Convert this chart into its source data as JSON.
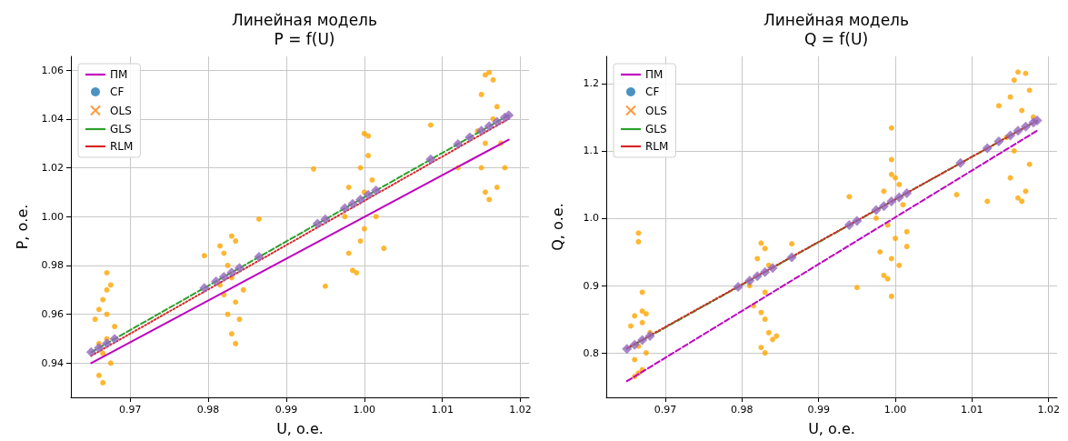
{
  "chart_data": [
    {
      "type": "scatter",
      "title": "Линейная модель\nP = f(U)",
      "xlabel": "U, о.е.",
      "ylabel": "P, о.е.",
      "xlim": [
        0.9624,
        1.0211
      ],
      "ylim": [
        0.926,
        1.0656
      ],
      "xticks": [
        0.97,
        0.98,
        0.99,
        {
          "value": 1,
          "label": "1.00"
        },
        1.01,
        1.02
      ],
      "yticks": [
        0.94,
        0.96,
        0.98,
        {
          "value": 1,
          "label": "1.00"
        },
        1.02,
        1.04,
        1.06
      ],
      "grid": true,
      "legend": "top left",
      "series": [
        {
          "color": "#ffa500",
          "marker": "circle",
          "x": [
            0.9655,
            0.966,
            0.9665,
            0.967,
            0.9675,
            0.968,
            0.966,
            0.9665,
            0.967,
            0.9675,
            0.966,
            0.967,
            0.9665,
            0.967,
            0.9815,
            0.982,
            0.983,
            0.9835,
            0.9825,
            0.983,
            0.982,
            0.9825,
            0.9835,
            0.984,
            0.983,
            0.9835,
            0.9845,
            0.9815,
            0.9975,
            0.998,
            0.9985,
            0.999,
            0.9995,
            1.0,
            0.9995,
            1.0005,
            1.0,
            1.0005,
            1.0015,
            1.001,
            0.998,
            1.0,
            1.0145,
            1.015,
            1.0155,
            1.016,
            1.0165,
            1.017,
            1.0175,
            1.018,
            1.017,
            1.016,
            1.0155,
            1.015,
            1.0155,
            1.0165,
            0.9795,
            0.9865,
            0.9935,
            0.995,
            1.0085,
            1.0025,
            1.012
          ],
          "values": [
            0.958,
            0.935,
            0.932,
            0.97,
            0.972,
            0.955,
            0.962,
            0.966,
            0.977,
            0.94,
            0.948,
            0.95,
            0.944,
            0.96,
            0.988,
            0.985,
            0.992,
            0.99,
            0.98,
            0.975,
            0.968,
            0.96,
            0.965,
            0.958,
            0.952,
            0.948,
            0.97,
            0.972,
            1.0,
            0.985,
            0.978,
            0.977,
            0.99,
            1.01,
            1.02,
            1.025,
            1.034,
            1.033,
            1.0,
            1.015,
            1.012,
            0.995,
            1.035,
            1.05,
            1.058,
            1.059,
            1.056,
            1.045,
            1.03,
            1.02,
            1.012,
            1.007,
            1.01,
            1.02,
            1.03,
            1.04,
            0.984,
            0.999,
            1.0195,
            0.9715,
            1.0375,
            0.987,
            1.02
          ]
        },
        {
          "type": "line",
          "name": "ПМ",
          "color": "#bf00bf",
          "line_style": "solid",
          "x": [
            0.965,
            1.0185
          ],
          "values": [
            0.94,
            1.0315
          ]
        },
        {
          "name": "CF",
          "color": "#1f77b4",
          "marker": "circle"
        },
        {
          "name": "OLS",
          "color": "#ff7f0e",
          "marker": "cross"
        },
        {
          "type": "line",
          "name": "GLS",
          "color": "#2ca02c",
          "line_style": "dashed",
          "x": [
            0.965,
            1.0185
          ],
          "values": [
            0.9445,
            1.0415
          ]
        },
        {
          "type": "line",
          "name": "RLM",
          "color": "#d62728",
          "line_style": "dotted",
          "x": [
            0.965,
            1.0185
          ],
          "values": [
            0.943,
            1.04
          ]
        },
        {
          "color": "#9467bd",
          "marker": "diamond",
          "x": [
            0.965,
            0.966,
            0.967,
            0.968,
            0.9795,
            0.981,
            0.982,
            0.983,
            0.984,
            0.9865,
            0.994,
            0.995,
            0.9975,
            0.9985,
            0.9995,
            1.0005,
            1.0015,
            1.0085,
            1.012,
            1.0135,
            1.015,
            1.016,
            1.017,
            1.018,
            1.0185
          ],
          "values": [
            0.9445,
            0.9463,
            0.9481,
            0.9499,
            0.9708,
            0.9735,
            0.9753,
            0.9771,
            0.979,
            0.9835,
            0.9971,
            0.9989,
            1.0034,
            1.0052,
            1.007,
            1.0089,
            1.0107,
            1.0234,
            1.0297,
            1.0325,
            1.0352,
            1.037,
            1.0388,
            1.0406,
            1.0415
          ]
        }
      ]
    },
    {
      "type": "scatter",
      "title": "Линейная модель\nQ = f(U)",
      "xlabel": "U, о.е.",
      "ylabel": "Q, о.е.",
      "xlim": [
        0.9623,
        1.0211
      ],
      "ylim": [
        0.734,
        1.2403
      ],
      "xticks": [
        0.97,
        0.98,
        0.99,
        {
          "value": 1,
          "label": "1.00"
        },
        1.01,
        1.02
      ],
      "yticks": [
        0.8,
        0.9,
        {
          "value": 1,
          "label": "1.0"
        },
        1.1,
        1.2
      ],
      "grid": true,
      "legend": "top left",
      "series": [
        {
          "color": "#ffa500",
          "marker": "circle",
          "x": [
            0.9655,
            0.966,
            0.967,
            0.9675,
            0.968,
            0.9675,
            0.967,
            0.966,
            0.9665,
            0.9665,
            0.966,
            0.967,
            0.9665,
            0.9665,
            0.967,
            0.981,
            0.982,
            0.9825,
            0.983,
            0.9835,
            0.983,
            0.9825,
            0.983,
            0.9835,
            0.984,
            0.9825,
            0.983,
            0.9845,
            0.9815,
            0.9865,
            0.9975,
            0.998,
            0.9985,
            0.999,
            0.9995,
            1.0,
            0.9995,
            1.0005,
            1.001,
            1.0015,
            1.0005,
            0.9985,
            0.999,
            1.0,
            0.9995,
            0.9995,
            0.9995,
            1.0015,
            0.994,
            0.995,
            1.0145,
            1.015,
            1.0155,
            1.016,
            1.017,
            1.0175,
            1.018,
            1.0175,
            1.017,
            1.0165,
            1.016,
            1.015,
            1.0155,
            1.0165,
            1.0135,
            1.008,
            1.012
          ],
          "values": [
            0.84,
            0.855,
            0.862,
            0.858,
            0.83,
            0.8,
            0.775,
            0.765,
            0.77,
            0.81,
            0.79,
            0.845,
            0.978,
            0.965,
            0.89,
            0.9,
            0.94,
            0.963,
            0.955,
            0.93,
            0.89,
            0.86,
            0.85,
            0.83,
            0.82,
            0.808,
            0.8,
            0.825,
            0.87,
            0.962,
            1.0,
            0.95,
            0.915,
            0.91,
            0.94,
            1.06,
            1.065,
            1.05,
            1.02,
            0.98,
            0.93,
            1.04,
            0.99,
            0.97,
            1.134,
            1.087,
            0.884,
            0.958,
            1.032,
            0.897,
            1.12,
            1.18,
            1.205,
            1.217,
            1.215,
            1.19,
            1.15,
            1.08,
            1.04,
            1.025,
            1.03,
            1.06,
            1.1,
            1.16,
            1.167,
            1.035,
            1.025
          ]
        },
        {
          "type": "line",
          "name": "ПМ",
          "color": "#bf00bf",
          "line_style": "dashed",
          "x": [
            0.965,
            1.0185
          ],
          "values": [
            0.758,
            1.13
          ]
        },
        {
          "name": "CF",
          "color": "#1f77b4",
          "marker": "circle"
        },
        {
          "name": "OLS",
          "color": "#ff7f0e",
          "marker": "cross"
        },
        {
          "type": "line",
          "name": "GLS",
          "color": "#2ca02c",
          "line_style": "dashed",
          "x": [
            0.965,
            1.0185
          ],
          "values": [
            0.806,
            1.145
          ]
        },
        {
          "type": "line",
          "name": "RLM",
          "color": "#d62728",
          "line_style": "dotted",
          "x": [
            0.965,
            1.0185
          ],
          "values": [
            0.807,
            1.145
          ]
        },
        {
          "color": "#9467bd",
          "marker": "diamond",
          "x": [
            0.965,
            0.966,
            0.967,
            0.968,
            0.9795,
            0.981,
            0.982,
            0.983,
            0.984,
            0.9865,
            0.994,
            0.995,
            0.9975,
            0.9985,
            0.9995,
            1.0005,
            1.0015,
            1.0085,
            1.012,
            1.0135,
            1.015,
            1.016,
            1.017,
            1.018,
            1.0185
          ],
          "values": [
            0.806,
            0.812,
            0.819,
            0.825,
            0.898,
            0.907,
            0.914,
            0.92,
            0.926,
            0.942,
            0.99,
            0.996,
            1.012,
            1.018,
            1.025,
            1.031,
            1.037,
            1.082,
            1.104,
            1.114,
            1.123,
            1.13,
            1.136,
            1.142,
            1.145
          ]
        }
      ]
    }
  ]
}
